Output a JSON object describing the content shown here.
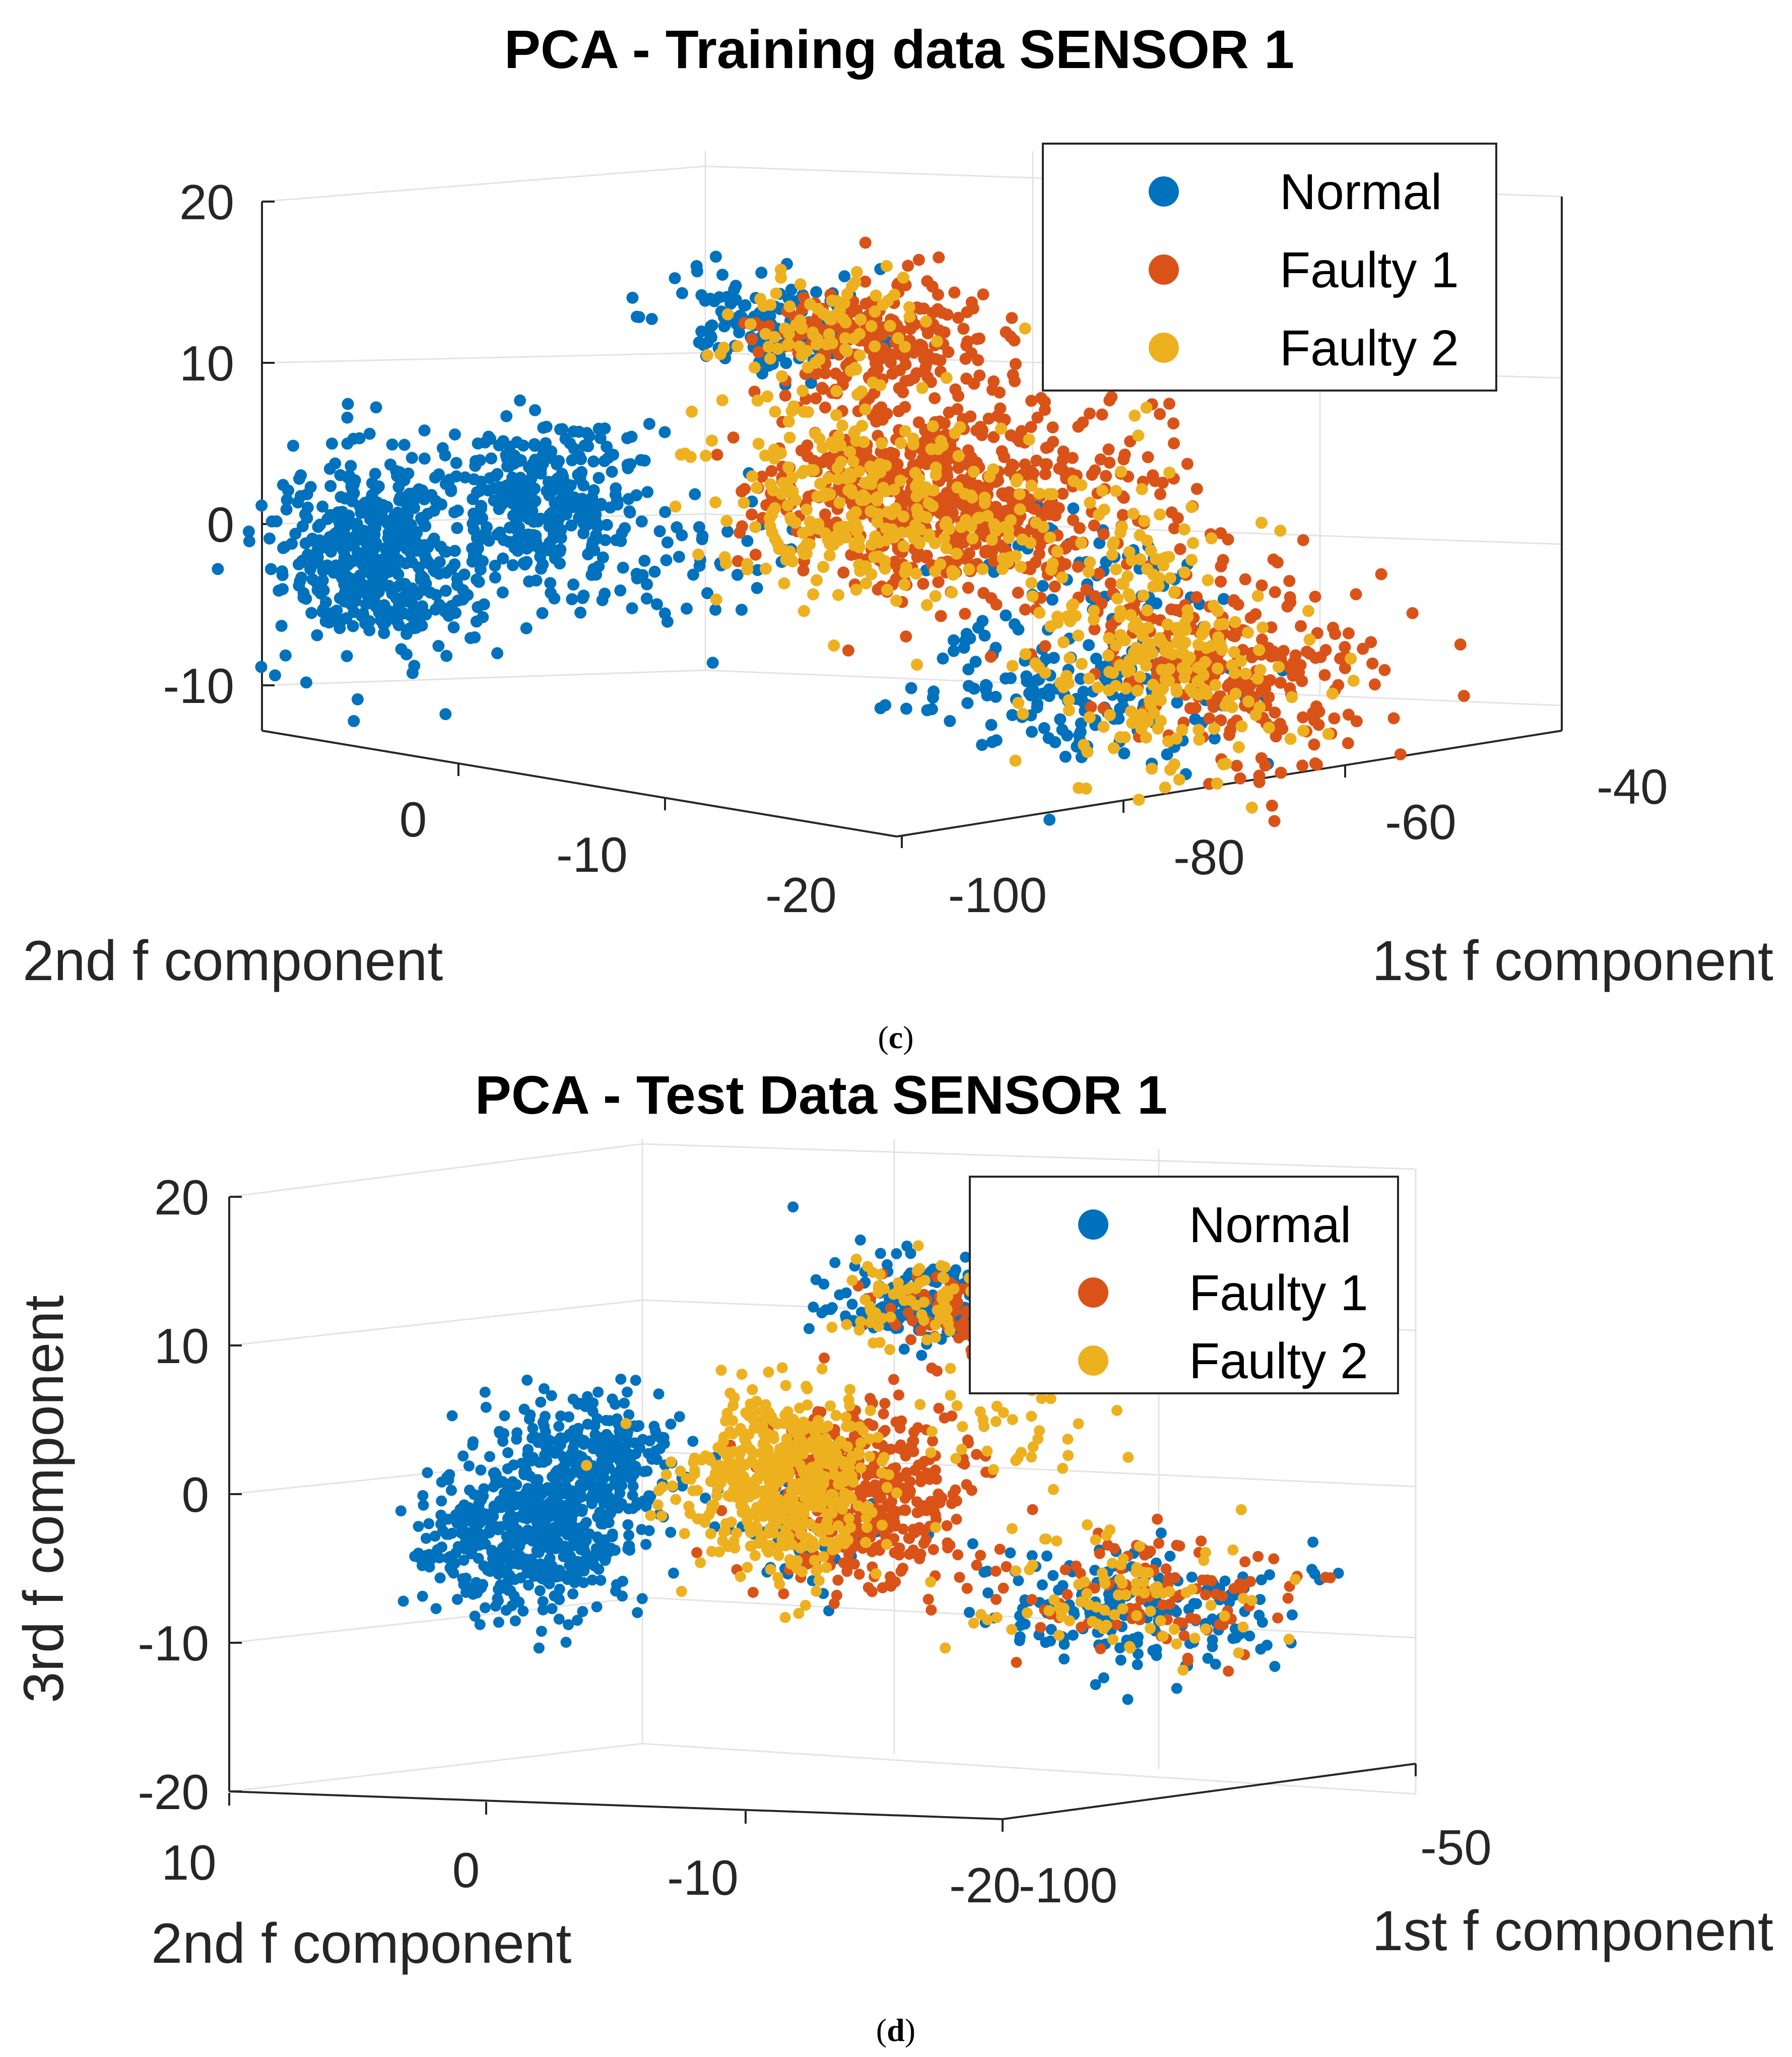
{
  "colors": {
    "normal": "#0072BD",
    "faulty1": "#D95319",
    "faulty2": "#EDB120"
  },
  "chart_data": [
    {
      "type": "scatter",
      "projection": "3d",
      "title": "PCA - Training data SENSOR 1",
      "xlabel": "1st f component",
      "ylabel": "2nd f component",
      "zlabel": "",
      "x_ticks": [
        "-100",
        "-80",
        "-60",
        "-40"
      ],
      "y_ticks": [
        "0",
        "-10",
        "-20"
      ],
      "z_ticks": [
        "20",
        "10",
        "0",
        "-10"
      ],
      "xlim": [
        -105,
        -35
      ],
      "ylim": [
        -22,
        8
      ],
      "zlim": [
        -15,
        20
      ],
      "grid": true,
      "legend_position": "top-right",
      "series": [
        {
          "name": "Normal",
          "color": "#0072BD",
          "clusters": [
            {
              "x": -100,
              "y": 5,
              "z": -4,
              "n": 480,
              "spread": [
                3,
                2,
                3
              ]
            },
            {
              "x": -95,
              "y": -1,
              "z": 0,
              "n": 320,
              "spread": [
                3,
                2,
                2.5
              ]
            },
            {
              "x": -82,
              "y": -6,
              "z": 11,
              "n": 140,
              "spread": [
                3,
                2,
                1.5
              ]
            },
            {
              "x": -72,
              "y": -16,
              "z": -11,
              "n": 160,
              "spread": [
                4,
                3,
                2
              ]
            },
            {
              "x": -62,
              "y": -12,
              "z": -5,
              "n": 60,
              "spread": [
                4,
                3,
                2
              ]
            },
            {
              "x": -88,
              "y": -5,
              "z": -3,
              "n": 45,
              "spread": [
                4,
                2,
                2
              ]
            }
          ]
        },
        {
          "name": "Faulty 1",
          "color": "#D95319",
          "clusters": [
            {
              "x": -72,
              "y": -9,
              "z": 0,
              "n": 600,
              "spread": [
                4,
                3,
                3
              ]
            },
            {
              "x": -70,
              "y": -6,
              "z": 9,
              "n": 220,
              "spread": [
                4,
                2,
                2
              ]
            },
            {
              "x": -58,
              "y": -17,
              "z": -10,
              "n": 260,
              "spread": [
                4,
                3,
                3
              ]
            },
            {
              "x": -56,
              "y": -10,
              "z": 0,
              "n": 70,
              "spread": [
                4,
                2,
                3
              ]
            }
          ]
        },
        {
          "name": "Faulty 2",
          "color": "#EDB120",
          "clusters": [
            {
              "x": -78,
              "y": -8,
              "z": 0,
              "n": 280,
              "spread": [
                4,
                3,
                3
              ]
            },
            {
              "x": -64,
              "y": -16,
              "z": -10,
              "n": 220,
              "spread": [
                4,
                3,
                3
              ]
            },
            {
              "x": -74,
              "y": -5,
              "z": 10,
              "n": 90,
              "spread": [
                4,
                2,
                2
              ]
            },
            {
              "x": -60,
              "y": -12,
              "z": -2,
              "n": 70,
              "spread": [
                4,
                3,
                3
              ]
            }
          ]
        }
      ]
    },
    {
      "type": "scatter",
      "projection": "3d",
      "title": "PCA - Test Data SENSOR 1",
      "xlabel": "1st f component",
      "ylabel": "2nd f component",
      "zlabel": "3rd f component",
      "x_ticks": [
        "-100",
        "-50"
      ],
      "y_ticks": [
        "10",
        "0",
        "-10",
        "-20"
      ],
      "z_ticks": [
        "20",
        "10",
        "0",
        "-10",
        "-20"
      ],
      "xlim": [
        -110,
        -40
      ],
      "ylim": [
        -22,
        12
      ],
      "zlim": [
        -20,
        20
      ],
      "grid": true,
      "legend_position": "top-right",
      "series": [
        {
          "name": "Normal",
          "color": "#0072BD",
          "clusters": [
            {
              "x": -98,
              "y": 2,
              "z": -3,
              "n": 520,
              "spread": [
                4,
                2,
                2.5
              ]
            },
            {
              "x": -92,
              "y": 1,
              "z": 2,
              "n": 260,
              "spread": [
                3,
                2,
                2
              ]
            },
            {
              "x": -70,
              "y": -8,
              "z": 12,
              "n": 180,
              "spread": [
                4,
                2,
                1.5
              ]
            },
            {
              "x": -60,
              "y": -15,
              "z": -9,
              "n": 190,
              "spread": [
                5,
                3,
                2
              ]
            },
            {
              "x": -82,
              "y": -6,
              "z": -3,
              "n": 50,
              "spread": [
                4,
                2,
                2
              ]
            }
          ]
        },
        {
          "name": "Faulty 1",
          "color": "#D95319",
          "clusters": [
            {
              "x": -72,
              "y": -6,
              "z": -1,
              "n": 420,
              "spread": [
                4,
                2,
                3
              ]
            },
            {
              "x": -64,
              "y": -9,
              "z": 11,
              "n": 140,
              "spread": [
                4,
                2,
                1.5
              ]
            },
            {
              "x": -58,
              "y": -15,
              "z": -8,
              "n": 110,
              "spread": [
                4,
                3,
                2
              ]
            }
          ]
        },
        {
          "name": "Faulty 2",
          "color": "#EDB120",
          "clusters": [
            {
              "x": -78,
              "y": -4,
              "z": 0,
              "n": 520,
              "spread": [
                3,
                2,
                3
              ]
            },
            {
              "x": -70,
              "y": -8,
              "z": 12,
              "n": 70,
              "spread": [
                3,
                2,
                1.5
              ]
            },
            {
              "x": -60,
              "y": -14,
              "z": -8,
              "n": 90,
              "spread": [
                4,
                3,
                2
              ]
            },
            {
              "x": -66,
              "y": -11,
              "z": 3,
              "n": 40,
              "spread": [
                3,
                2,
                3
              ]
            }
          ]
        }
      ]
    }
  ],
  "captions": [
    "c",
    "d"
  ]
}
